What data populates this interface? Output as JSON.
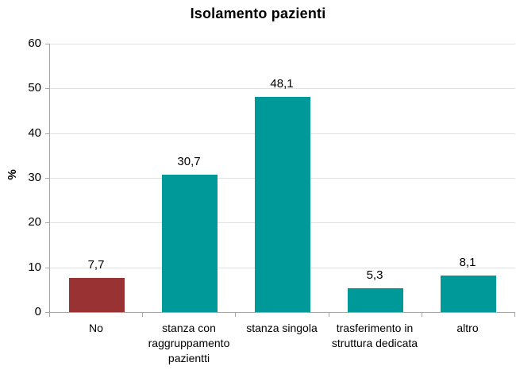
{
  "chart_data": {
    "type": "bar",
    "title": "Isolamento pazienti",
    "xlabel": "",
    "ylabel": "%",
    "categories": [
      "No",
      "stanza con raggruppamento pazientti",
      "stanza singola",
      "trasferimento in struttura dedicata",
      "altro"
    ],
    "values": [
      7.7,
      30.7,
      48.1,
      5.3,
      8.1
    ],
    "value_labels": [
      "7,7",
      "30,7",
      "48,1",
      "5,3",
      "8,1"
    ],
    "bar_colors": [
      "#993333",
      "#009999",
      "#009999",
      "#009999",
      "#009999"
    ],
    "ylim": [
      0,
      60
    ],
    "yticks": [
      0,
      10,
      20,
      30,
      40,
      50,
      60
    ],
    "grid": "horizontal",
    "legend_position": "none"
  },
  "colors": {
    "bar_teal": "#009999",
    "bar_red": "#993333",
    "gridline": "#e2e2e2",
    "axis_line": "#a6a6a6",
    "text": "#000000",
    "background": "#ffffff"
  }
}
